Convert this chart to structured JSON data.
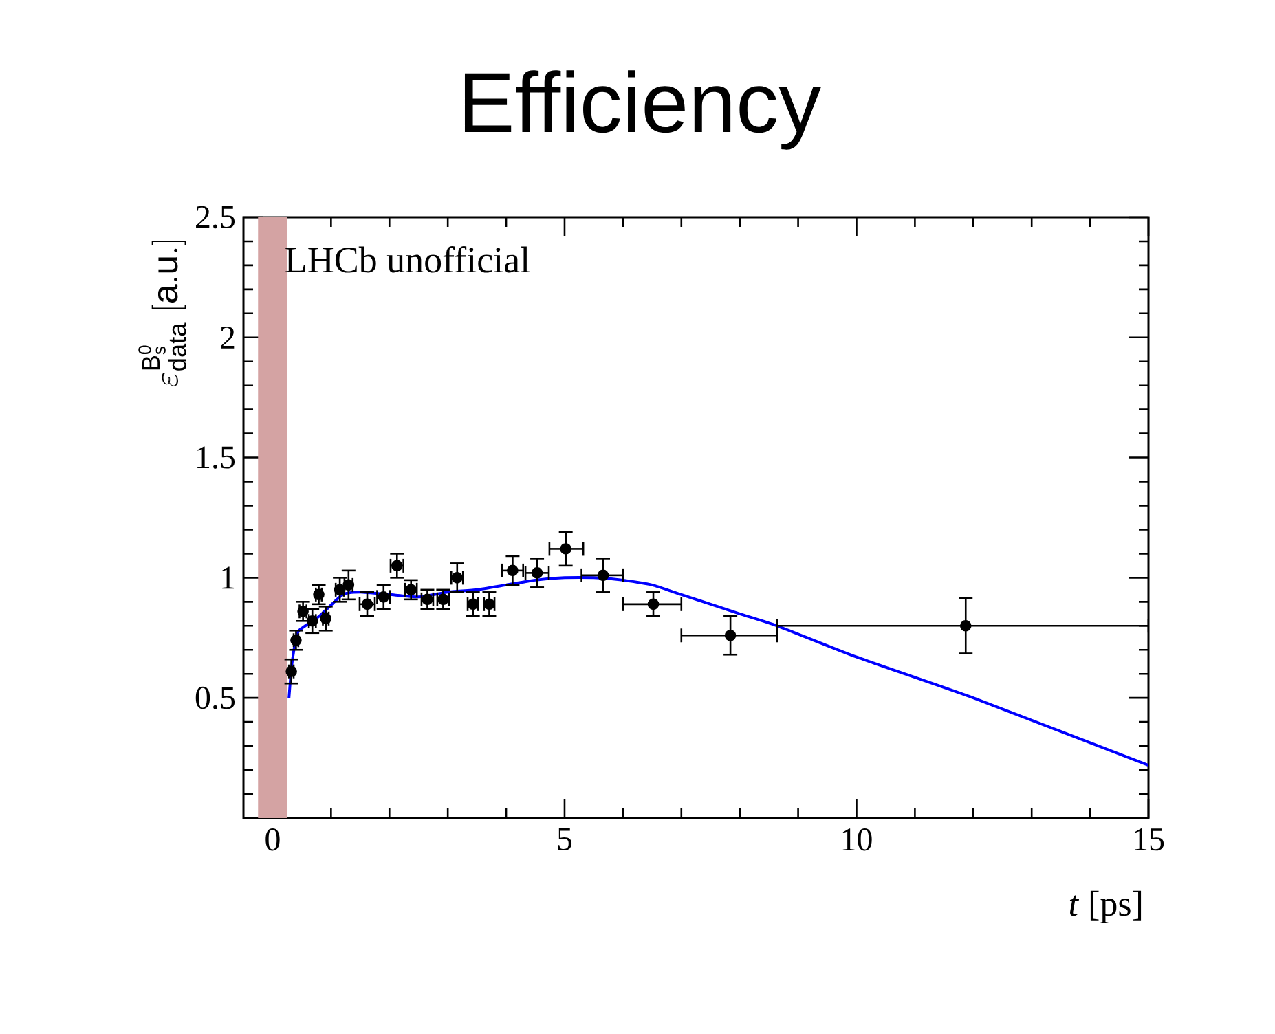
{
  "chart_data": {
    "type": "scatter",
    "title": "Efficiency",
    "xlabel": "*t* [ps]",
    "ylabel": "\\varepsilon^{\\mathrm{B^0_s}}_{\\mathrm{data}}\\;[\\mathrm{a.u.}]",
    "annotations": [
      "LHCb unofficial"
    ],
    "xlim": [
      -0.5,
      15
    ],
    "ylim": [
      0,
      2.5
    ],
    "xticks": [
      0,
      5,
      10,
      15
    ],
    "yticks": [
      {
        "value": 0,
        "label": null
      },
      0.5,
      1,
      1.5,
      2,
      2.5
    ],
    "grid": false,
    "bands": [
      {
        "axis": "x",
        "from": -0.25,
        "to": 0.25,
        "color": "#d4a3a3"
      }
    ],
    "series": [
      {
        "marker": "circle",
        "color": "#000000",
        "x": [
          0.32,
          0.4,
          0.52,
          0.68,
          0.79,
          0.91,
          1.15,
          1.3,
          1.62,
          1.9,
          2.13,
          2.37,
          2.65,
          2.92,
          3.16,
          3.43,
          3.71,
          4.11,
          4.53,
          5.02,
          5.66,
          6.52,
          7.84,
          11.87
        ],
        "values": [
          0.61,
          0.74,
          0.86,
          0.82,
          0.93,
          0.83,
          0.95,
          0.97,
          0.89,
          0.92,
          1.05,
          0.95,
          0.91,
          0.91,
          1.0,
          0.89,
          0.89,
          1.03,
          1.02,
          1.12,
          1.01,
          0.89,
          0.76,
          0.8
        ],
        "errors": [
          0.05,
          0.04,
          0.04,
          0.05,
          0.04,
          0.05,
          0.05,
          0.06,
          0.05,
          0.05,
          0.05,
          0.04,
          0.04,
          0.04,
          0.06,
          0.05,
          0.05,
          0.06,
          0.06,
          0.07,
          0.07,
          0.05,
          0.08,
          0.115
        ],
        "xerrors": [
          0.04,
          0.04,
          0.06,
          0.06,
          0.05,
          0.05,
          0.07,
          0.07,
          0.13,
          0.11,
          0.11,
          0.1,
          0.1,
          0.1,
          0.1,
          0.09,
          0.09,
          0.18,
          0.2,
          [
            4.74,
            5.32
          ],
          [
            5.29,
            6.0
          ],
          [
            6.0,
            7.0
          ],
          [
            7.0,
            8.64
          ],
          [
            8.64,
            15
          ]
        ]
      },
      {
        "type": "line",
        "marker": "none",
        "color": "#0000ff",
        "x": [
          0.28,
          0.32,
          0.38,
          0.45,
          0.8,
          1.2,
          1.5,
          2,
          2.5,
          3,
          3.5,
          4,
          4.5,
          5,
          5.5,
          6,
          6.5,
          7,
          8,
          8.64,
          10,
          12,
          15
        ],
        "values": [
          0.5,
          0.62,
          0.72,
          0.78,
          0.84,
          0.93,
          0.94,
          0.93,
          0.92,
          0.94,
          0.95,
          0.97,
          0.99,
          1.0,
          1.0,
          0.99,
          0.97,
          0.93,
          0.85,
          0.8,
          0.67,
          0.5,
          0.22
        ]
      }
    ]
  }
}
